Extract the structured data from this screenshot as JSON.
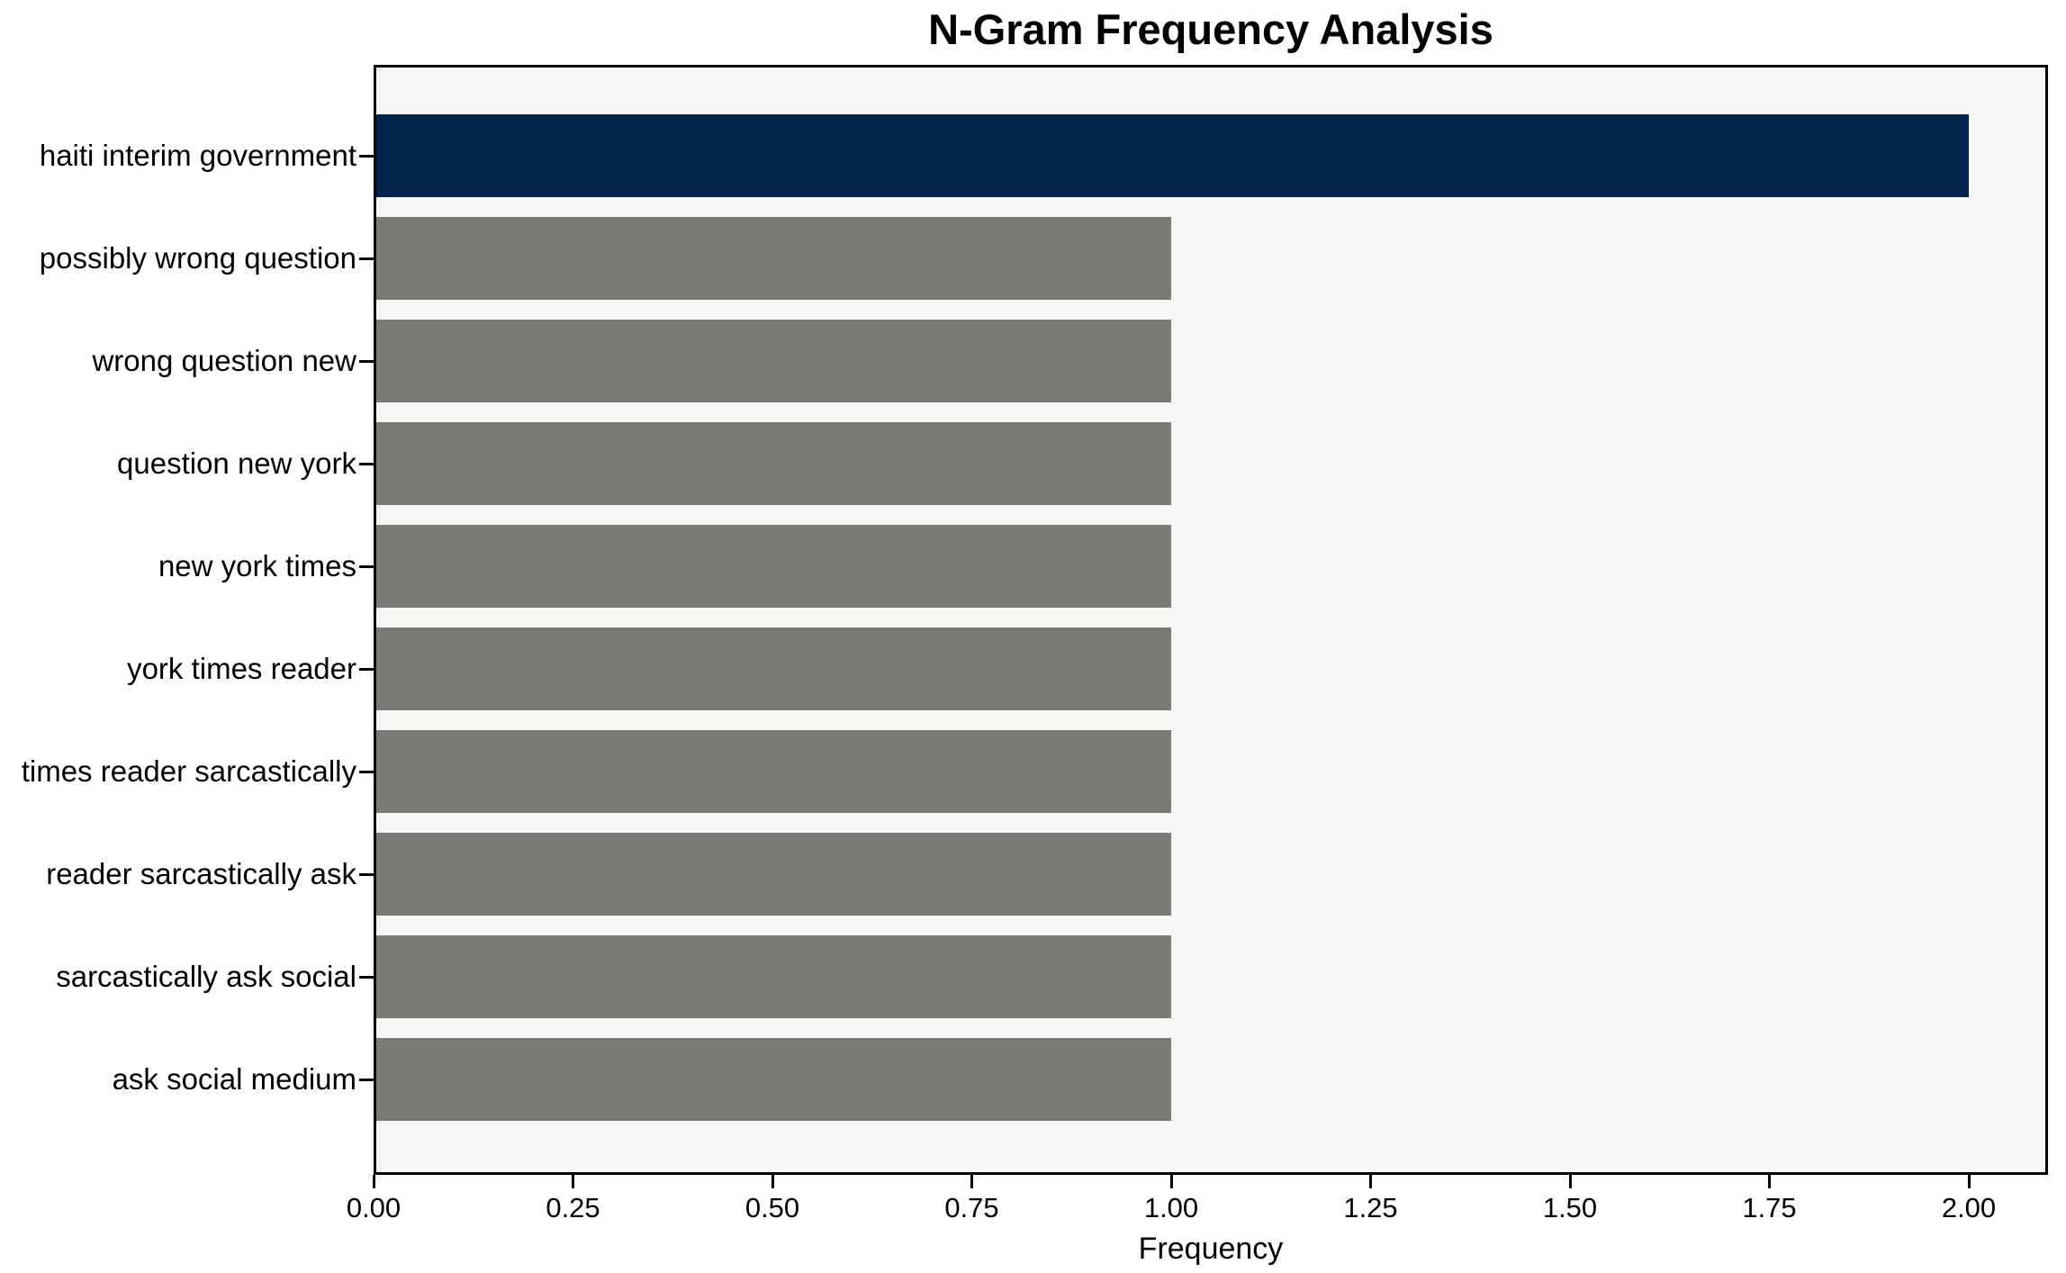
{
  "chart_data": {
    "type": "bar",
    "orientation": "horizontal",
    "title": "N-Gram Frequency Analysis",
    "xlabel": "Frequency",
    "ylabel": "",
    "categories": [
      "haiti interim government",
      "possibly wrong question",
      "wrong question new",
      "question new york",
      "new york times",
      "york times reader",
      "times reader sarcastically",
      "reader sarcastically ask",
      "sarcastically ask social",
      "ask social medium"
    ],
    "values": [
      2,
      1,
      1,
      1,
      1,
      1,
      1,
      1,
      1,
      1
    ],
    "xlim": [
      0,
      2.1
    ],
    "xticks": [
      0.0,
      0.25,
      0.5,
      0.75,
      1.0,
      1.25,
      1.5,
      1.75,
      2.0
    ],
    "xtick_labels": [
      "0.00",
      "0.25",
      "0.50",
      "0.75",
      "1.00",
      "1.25",
      "1.50",
      "1.75",
      "2.00"
    ],
    "grid": false,
    "legend": null,
    "colors": {
      "highlight_bar": "#03234d",
      "default_bar": "#7a7a76",
      "plot_background": "#f6f6f5",
      "figure_background": "#ffffff",
      "text": "#000000"
    },
    "highlight_index": 0
  }
}
